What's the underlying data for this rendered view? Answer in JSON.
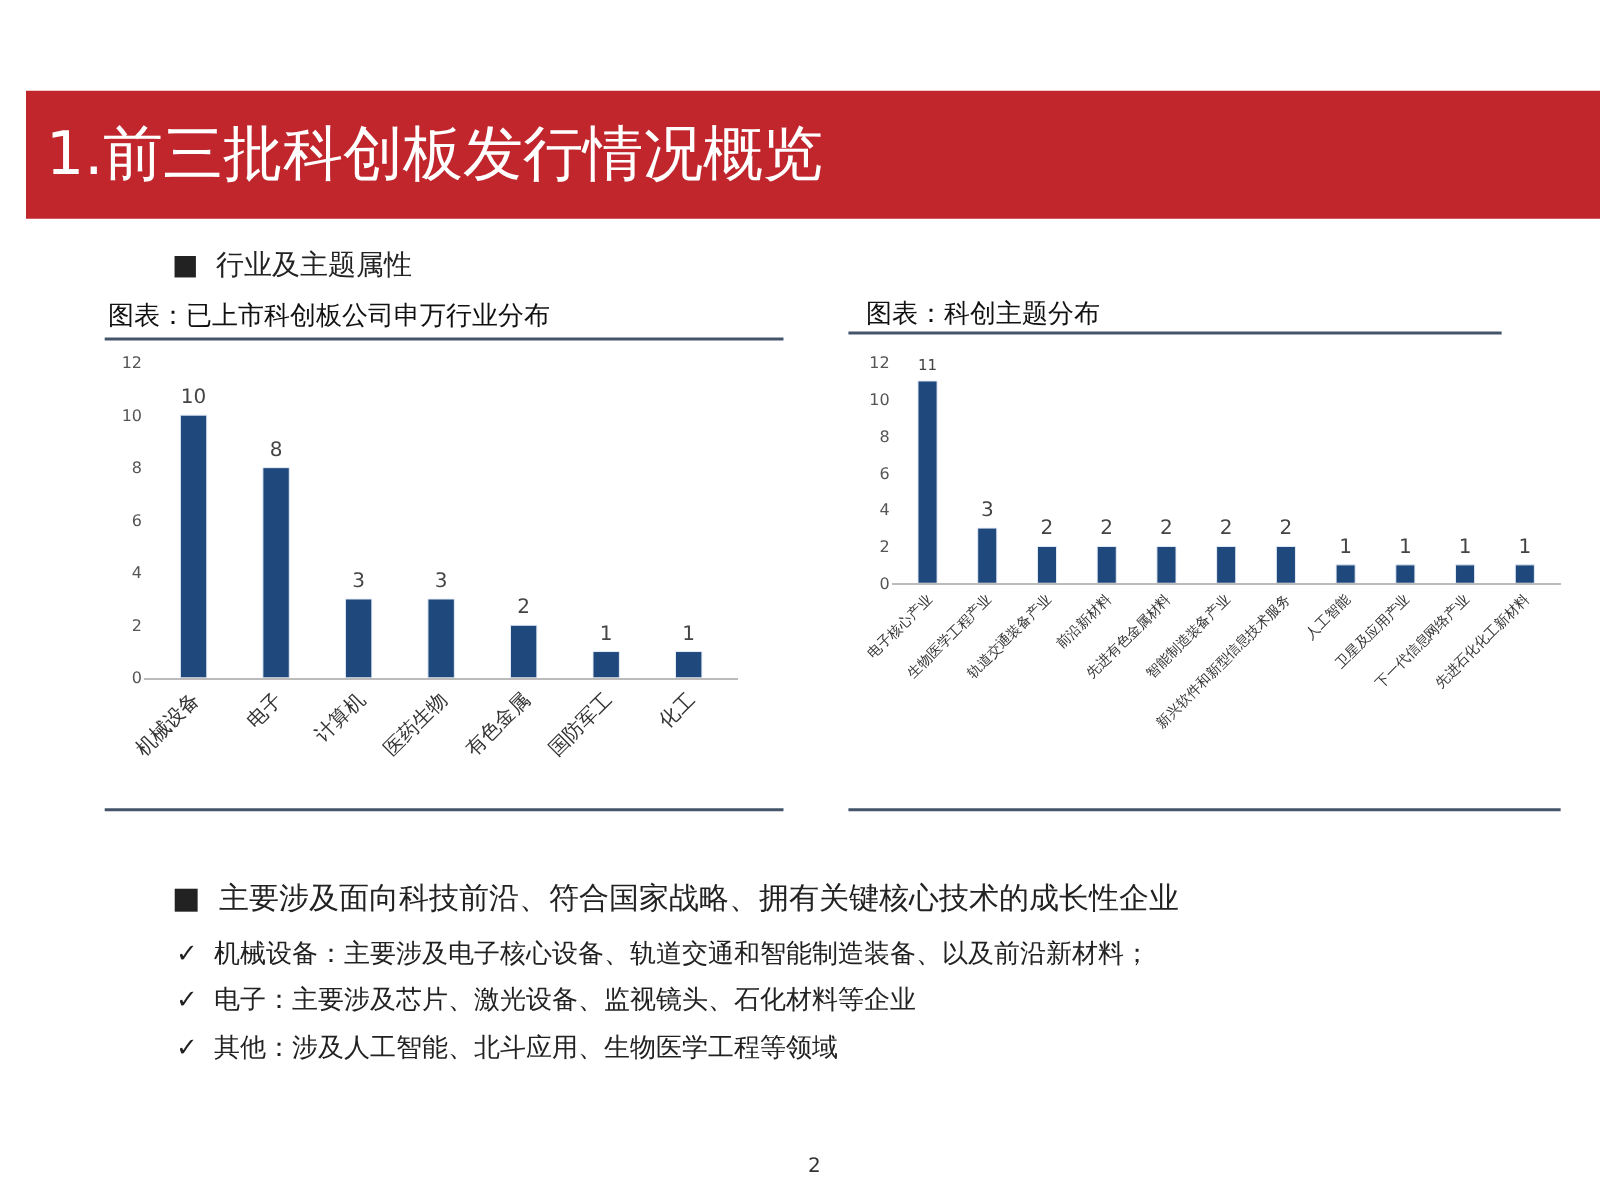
{
  "chart_data": [
    {
      "type": "bar",
      "title": "图表：已上市科创板公司申万行业分布",
      "categories": [
        "机械设备",
        "电子",
        "计算机",
        "医药生物",
        "有色金属",
        "国防军工",
        "化工"
      ],
      "values": [
        10,
        8,
        3,
        3,
        2,
        1,
        1
      ],
      "color": "#1f497d",
      "ylim": [
        0,
        12
      ],
      "yticks": [
        0,
        2,
        4,
        6,
        8,
        10,
        12
      ],
      "data_labels": true,
      "annotations": [
        "1.前三批科创板发行情况概览",
        "■  行业及主题属性"
      ]
    },
    {
      "type": "bar",
      "title": "图表：科创主题分布",
      "categories": [
        "电子核心产业",
        "生物医学工程产业",
        "轨道交通装备产业",
        "前沿新材料",
        "先进有色金属材料",
        "智能制造装备产业",
        "新兴软件和新型信息技术服务",
        "人工智能",
        "卫星及应用产业",
        "下一代信息网络产业",
        "先进石化化工新材料"
      ],
      "values": [
        11,
        3,
        2,
        2,
        2,
        2,
        2,
        1,
        1,
        1,
        1
      ],
      "color": "#1f497d",
      "ylim": [
        0,
        12
      ],
      "yticks": [
        0,
        2,
        4,
        6,
        8,
        10,
        12
      ],
      "data_labels": true,
      "annotations": [
        "■  主要涉及面向科技前沿、符合国家战略、拥有关键核心技术的成长性企业",
        "✓  机械设备：主要涉及电子核心设备、轨道交通和智能制造装备、以及前沿新材料；",
        "✓  电子：主要涉及芯片、激光设备、监视镜头、石化材料等企业",
        "✓  其他：涉及人工智能、北斗应用、生物医学工程等领域",
        "2"
      ]
    }
  ]
}
